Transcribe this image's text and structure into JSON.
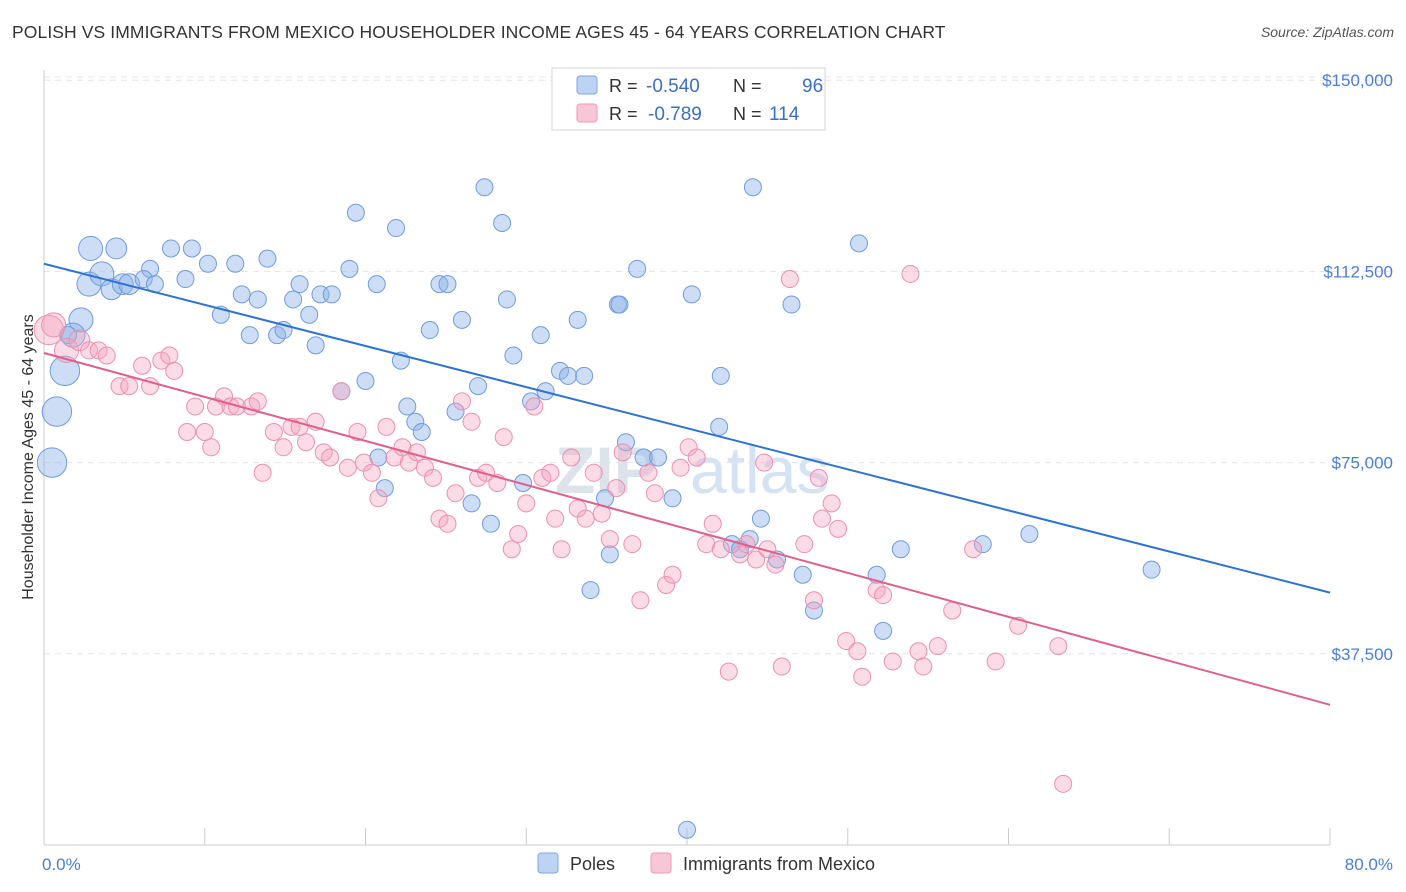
{
  "title": "POLISH VS IMMIGRANTS FROM MEXICO HOUSEHOLDER INCOME AGES 45 - 64 YEARS CORRELATION CHART",
  "source": "Source: ZipAtlas.com",
  "watermark": "ZIPatlas",
  "colors": {
    "poles": "#8fb4e8",
    "poles_line": "#2e72d2",
    "mexico": "#f4a6c0",
    "mexico_line": "#e0608c",
    "tick_text": "#4a7fd4"
  },
  "legend": {
    "rows": [
      {
        "series": "Poles",
        "r_label": "R =",
        "r_value": "-0.540",
        "n_label": "N =",
        "n_value": "96"
      },
      {
        "series": "Immigrants from Mexico",
        "r_label": "R =",
        "r_value": "-0.789",
        "n_label": "N =",
        "n_value": "114"
      }
    ]
  },
  "chart_data": {
    "type": "scatter",
    "title": "POLISH VS IMMIGRANTS FROM MEXICO HOUSEHOLDER INCOME AGES 45 - 64 YEARS CORRELATION CHART",
    "xlabel": "",
    "ylabel": "Householder Income Ages 45 - 64 years",
    "xlim": [
      0,
      80
    ],
    "ylim": [
      0,
      152000
    ],
    "x_tick_labels": [
      "0.0%",
      "80.0%"
    ],
    "y_ticks": [
      37500,
      75000,
      112500,
      150000
    ],
    "y_tick_labels": [
      "$37,500",
      "$75,000",
      "$112,500",
      "$150,000"
    ],
    "series": [
      {
        "name": "Poles",
        "trend": {
          "x": [
            0,
            80
          ],
          "y": [
            114000,
            49500
          ]
        },
        "points": [
          [
            0.5,
            75000,
            3
          ],
          [
            0.8,
            85000,
            3
          ],
          [
            1.3,
            93000,
            3
          ],
          [
            2.3,
            103000,
            2
          ],
          [
            1.8,
            100000,
            2
          ],
          [
            2.9,
            117000,
            2
          ],
          [
            2.8,
            110000,
            2
          ],
          [
            3.6,
            112000,
            2
          ],
          [
            4.5,
            117000,
            1.5
          ],
          [
            4.2,
            109000,
            1.5
          ],
          [
            4.9,
            110000,
            1.5
          ],
          [
            5.3,
            110000,
            1.5
          ],
          [
            6.6,
            113000,
            1
          ],
          [
            6.2,
            111000,
            1
          ],
          [
            6.9,
            110000,
            1
          ],
          [
            7.9,
            117000,
            1
          ],
          [
            8.8,
            111000,
            1
          ],
          [
            9.2,
            117000,
            1
          ],
          [
            10.2,
            114000,
            1
          ],
          [
            11.0,
            104000,
            1
          ],
          [
            11.9,
            114000,
            1
          ],
          [
            12.3,
            108000,
            1
          ],
          [
            12.8,
            100000,
            1
          ],
          [
            13.3,
            107000,
            1
          ],
          [
            13.9,
            115000,
            1
          ],
          [
            14.5,
            100000,
            1
          ],
          [
            14.9,
            101000,
            1
          ],
          [
            15.5,
            107000,
            1
          ],
          [
            15.9,
            110000,
            1
          ],
          [
            16.5,
            104000,
            1
          ],
          [
            16.9,
            98000,
            1
          ],
          [
            17.2,
            108000,
            1
          ],
          [
            17.9,
            108000,
            1
          ],
          [
            18.5,
            89000,
            1
          ],
          [
            19.0,
            113000,
            1
          ],
          [
            19.4,
            124000,
            1
          ],
          [
            20.0,
            91000,
            1
          ],
          [
            20.7,
            110000,
            1
          ],
          [
            20.8,
            76000,
            1
          ],
          [
            21.2,
            70000,
            1
          ],
          [
            21.9,
            121000,
            1
          ],
          [
            22.2,
            95000,
            1
          ],
          [
            22.6,
            86000,
            1
          ],
          [
            23.1,
            83000,
            1
          ],
          [
            23.5,
            81000,
            1
          ],
          [
            24.0,
            101000,
            1
          ],
          [
            24.6,
            110000,
            1
          ],
          [
            25.1,
            110000,
            1
          ],
          [
            25.6,
            85000,
            1
          ],
          [
            26.0,
            103000,
            1
          ],
          [
            26.6,
            67000,
            1
          ],
          [
            27.0,
            90000,
            1
          ],
          [
            27.4,
            129000,
            1
          ],
          [
            27.8,
            63000,
            1
          ],
          [
            28.5,
            122000,
            1
          ],
          [
            28.8,
            107000,
            1
          ],
          [
            29.2,
            96000,
            1
          ],
          [
            29.8,
            71000,
            1
          ],
          [
            30.3,
            87000,
            1
          ],
          [
            30.9,
            100000,
            1
          ],
          [
            31.2,
            89000,
            1
          ],
          [
            32.1,
            93000,
            1
          ],
          [
            32.6,
            92000,
            1
          ],
          [
            33.2,
            103000,
            1
          ],
          [
            33.6,
            92000,
            1
          ],
          [
            34.0,
            50000,
            1
          ],
          [
            34.9,
            68000,
            1
          ],
          [
            35.2,
            57000,
            1
          ],
          [
            35.7,
            106000,
            1
          ],
          [
            36.2,
            79000,
            1
          ],
          [
            36.9,
            113000,
            1
          ],
          [
            37.3,
            76000,
            1
          ],
          [
            38.2,
            76000,
            1
          ],
          [
            39.1,
            68000,
            1
          ],
          [
            40.3,
            108000,
            1
          ],
          [
            42.0,
            82000,
            1
          ],
          [
            42.1,
            92000,
            1
          ],
          [
            42.8,
            59000,
            1
          ],
          [
            43.3,
            58000,
            1
          ],
          [
            43.9,
            60000,
            1
          ],
          [
            44.1,
            129000,
            1
          ],
          [
            44.6,
            64000,
            1
          ],
          [
            45.6,
            56000,
            1
          ],
          [
            46.5,
            106000,
            1
          ],
          [
            47.2,
            53000,
            1
          ],
          [
            47.9,
            46000,
            1
          ],
          [
            50.7,
            118000,
            1
          ],
          [
            51.8,
            53000,
            1
          ],
          [
            52.2,
            42000,
            1
          ],
          [
            53.3,
            58000,
            1
          ],
          [
            58.4,
            59000,
            1
          ],
          [
            61.3,
            61000,
            1
          ],
          [
            68.9,
            54000,
            1
          ],
          [
            35.8,
            106000,
            1
          ],
          [
            40.0,
            3000,
            1
          ],
          [
            1.5,
            100000,
            1
          ]
        ]
      },
      {
        "name": "Immigrants from Mexico",
        "trend": {
          "x": [
            0,
            80
          ],
          "y": [
            96500,
            27500
          ]
        },
        "points": [
          [
            0.3,
            101000,
            3
          ],
          [
            0.6,
            102000,
            2
          ],
          [
            1.4,
            97000,
            2
          ],
          [
            2.2,
            99000,
            1.5
          ],
          [
            2.8,
            97000,
            1
          ],
          [
            3.4,
            97000,
            1
          ],
          [
            3.9,
            96000,
            1
          ],
          [
            4.7,
            90000,
            1
          ],
          [
            5.3,
            90000,
            1
          ],
          [
            6.1,
            94000,
            1
          ],
          [
            6.6,
            90000,
            1
          ],
          [
            7.3,
            95000,
            1
          ],
          [
            7.8,
            96000,
            1
          ],
          [
            8.1,
            93000,
            1
          ],
          [
            8.9,
            81000,
            1
          ],
          [
            9.4,
            86000,
            1
          ],
          [
            10.0,
            81000,
            1
          ],
          [
            10.4,
            78000,
            1
          ],
          [
            10.7,
            86000,
            1
          ],
          [
            11.2,
            88000,
            1
          ],
          [
            11.6,
            86000,
            1
          ],
          [
            12.0,
            86000,
            1
          ],
          [
            12.9,
            86000,
            1
          ],
          [
            13.3,
            87000,
            1
          ],
          [
            13.6,
            73000,
            1
          ],
          [
            14.3,
            81000,
            1
          ],
          [
            14.9,
            78000,
            1
          ],
          [
            15.4,
            82000,
            1
          ],
          [
            15.9,
            82000,
            1
          ],
          [
            16.3,
            79000,
            1
          ],
          [
            16.9,
            83000,
            1
          ],
          [
            17.4,
            77000,
            1
          ],
          [
            17.8,
            76000,
            1
          ],
          [
            18.5,
            89000,
            1
          ],
          [
            18.9,
            74000,
            1
          ],
          [
            19.5,
            81000,
            1
          ],
          [
            19.9,
            75000,
            1
          ],
          [
            20.4,
            73000,
            1
          ],
          [
            20.8,
            68000,
            1
          ],
          [
            21.3,
            82000,
            1
          ],
          [
            21.8,
            76000,
            1
          ],
          [
            22.3,
            78000,
            1
          ],
          [
            22.7,
            75000,
            1
          ],
          [
            23.2,
            77000,
            1
          ],
          [
            23.7,
            74000,
            1
          ],
          [
            24.2,
            72000,
            1
          ],
          [
            24.6,
            64000,
            1
          ],
          [
            25.1,
            63000,
            1
          ],
          [
            25.6,
            69000,
            1
          ],
          [
            26.0,
            87000,
            1
          ],
          [
            26.6,
            83000,
            1
          ],
          [
            27.0,
            72000,
            1
          ],
          [
            27.5,
            73000,
            1
          ],
          [
            28.2,
            71000,
            1
          ],
          [
            28.6,
            80000,
            1
          ],
          [
            29.1,
            58000,
            1
          ],
          [
            29.5,
            61000,
            1
          ],
          [
            30.0,
            67000,
            1
          ],
          [
            30.5,
            86000,
            1
          ],
          [
            31.0,
            72000,
            1
          ],
          [
            31.5,
            73000,
            1
          ],
          [
            31.8,
            64000,
            1
          ],
          [
            32.2,
            58000,
            1
          ],
          [
            32.8,
            76000,
            1
          ],
          [
            33.2,
            66000,
            1
          ],
          [
            33.7,
            64000,
            1
          ],
          [
            34.2,
            73000,
            1
          ],
          [
            34.7,
            65000,
            1
          ],
          [
            35.2,
            60000,
            1
          ],
          [
            35.6,
            70000,
            1
          ],
          [
            36.0,
            77000,
            1
          ],
          [
            36.6,
            59000,
            1
          ],
          [
            37.1,
            48000,
            1
          ],
          [
            37.6,
            73000,
            1
          ],
          [
            38.0,
            69000,
            1
          ],
          [
            38.7,
            51000,
            1
          ],
          [
            39.1,
            53000,
            1
          ],
          [
            39.6,
            74000,
            1
          ],
          [
            40.1,
            78000,
            1
          ],
          [
            40.6,
            76000,
            1
          ],
          [
            41.2,
            59000,
            1
          ],
          [
            41.6,
            63000,
            1
          ],
          [
            42.1,
            58000,
            1
          ],
          [
            42.6,
            34000,
            1
          ],
          [
            43.3,
            57000,
            1
          ],
          [
            43.7,
            59000,
            1
          ],
          [
            44.3,
            56000,
            1
          ],
          [
            45.0,
            58000,
            1
          ],
          [
            45.5,
            55000,
            1
          ],
          [
            45.9,
            35000,
            1
          ],
          [
            46.4,
            111000,
            1
          ],
          [
            47.3,
            59000,
            1
          ],
          [
            47.9,
            48000,
            1
          ],
          [
            48.4,
            64000,
            1
          ],
          [
            49.0,
            67000,
            1
          ],
          [
            49.4,
            62000,
            1
          ],
          [
            49.9,
            40000,
            1
          ],
          [
            50.6,
            38000,
            1
          ],
          [
            50.9,
            33000,
            1
          ],
          [
            51.8,
            50000,
            1
          ],
          [
            52.2,
            49000,
            1
          ],
          [
            52.8,
            36000,
            1
          ],
          [
            53.9,
            112000,
            1
          ],
          [
            54.4,
            38000,
            1
          ],
          [
            54.7,
            35000,
            1
          ],
          [
            55.6,
            39000,
            1
          ],
          [
            56.5,
            46000,
            1
          ],
          [
            57.8,
            58000,
            1
          ],
          [
            59.2,
            36000,
            1
          ],
          [
            60.6,
            43000,
            1
          ],
          [
            63.1,
            39000,
            1
          ],
          [
            63.4,
            12000,
            1
          ],
          [
            44.8,
            75000,
            1
          ],
          [
            48.2,
            72000,
            1
          ]
        ]
      }
    ]
  },
  "bottom_legend": [
    {
      "label": "Poles"
    },
    {
      "label": "Immigrants from Mexico"
    }
  ]
}
